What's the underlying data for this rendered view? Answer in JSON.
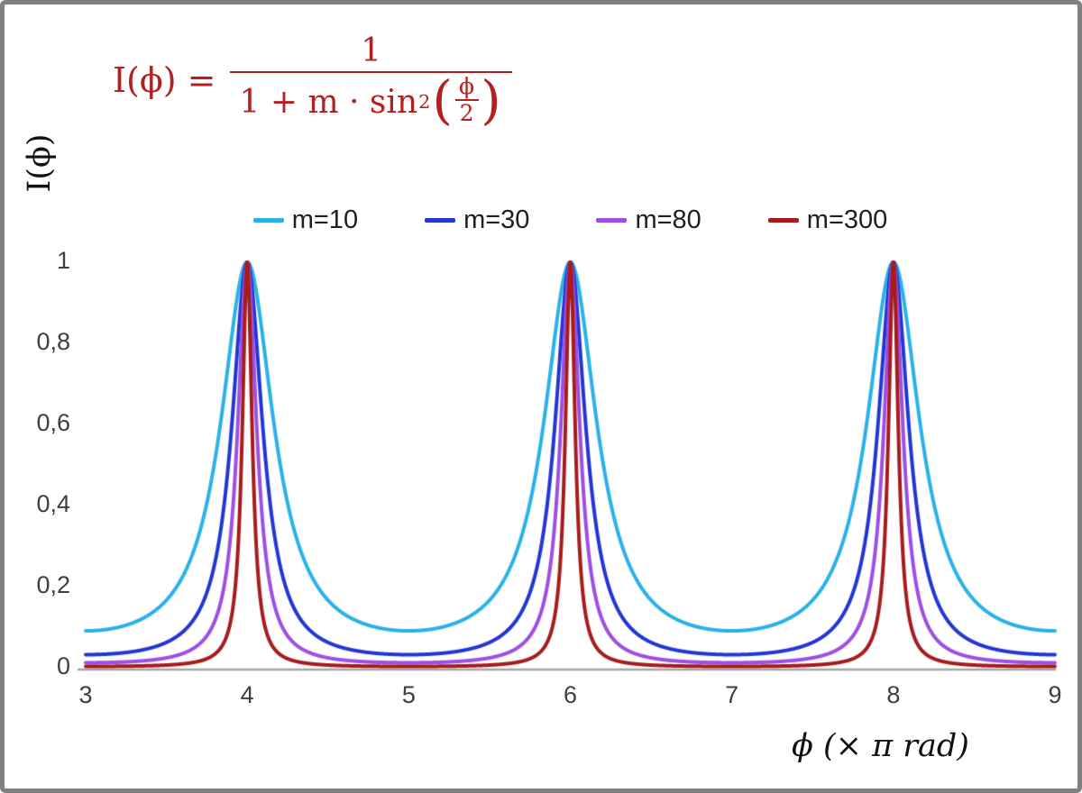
{
  "frame": {
    "border_color": "#7f7f7f",
    "background": "#ffffff"
  },
  "formula": {
    "lhs": "I(ϕ) =",
    "numerator": "1",
    "den_text": "1 + m · sin",
    "den_sup": "2",
    "paren_open": "(",
    "paren_close": ")",
    "inner_num": "ϕ",
    "inner_den": "2",
    "color": "#b32020"
  },
  "axes": {
    "y_label": "I(ϕ)",
    "x_label": "ϕ  (× π rad)",
    "x_tick_labels": [
      "3",
      "4",
      "5",
      "6",
      "7",
      "8",
      "9"
    ],
    "y_tick_labels": [
      "0",
      "0,2",
      "0,4",
      "0,6",
      "0,8",
      "1"
    ],
    "axis_line_color": "#a6a6a6",
    "tick_color": "#3f3f3f"
  },
  "chart_data": {
    "type": "line",
    "title": "Airy / Fabry-Perot transmission function I(ϕ) = 1 / (1 + m·sin²(ϕ/2))",
    "xlabel": "ϕ (× π rad)",
    "ylabel": "I(ϕ)",
    "xlim": [
      3,
      9
    ],
    "ylim": [
      0,
      1
    ],
    "x_ticks": [
      3,
      4,
      5,
      6,
      7,
      8,
      9
    ],
    "y_ticks": [
      0,
      0.2,
      0.4,
      0.6,
      0.8,
      1
    ],
    "x_unit": "π rad",
    "grid": false,
    "legend_position": "top-center",
    "function": "I(x) = 1 / (1 + m * sin(x*PI/2)^2), x in units of π rad",
    "peaks_at_x": [
      4,
      6,
      8
    ],
    "peak_value": 1,
    "line_width": 4,
    "series": [
      {
        "name": "m=10",
        "m": 10,
        "color": "#2ab2e8",
        "min_value": 0.091
      },
      {
        "name": "m=30",
        "m": 30,
        "color": "#2236d4",
        "min_value": 0.032
      },
      {
        "name": "m=80",
        "m": 80,
        "color": "#9d4fe3",
        "min_value": 0.012
      },
      {
        "name": "m=300",
        "m": 300,
        "color": "#a61c1c",
        "min_value": 0.003
      }
    ]
  }
}
